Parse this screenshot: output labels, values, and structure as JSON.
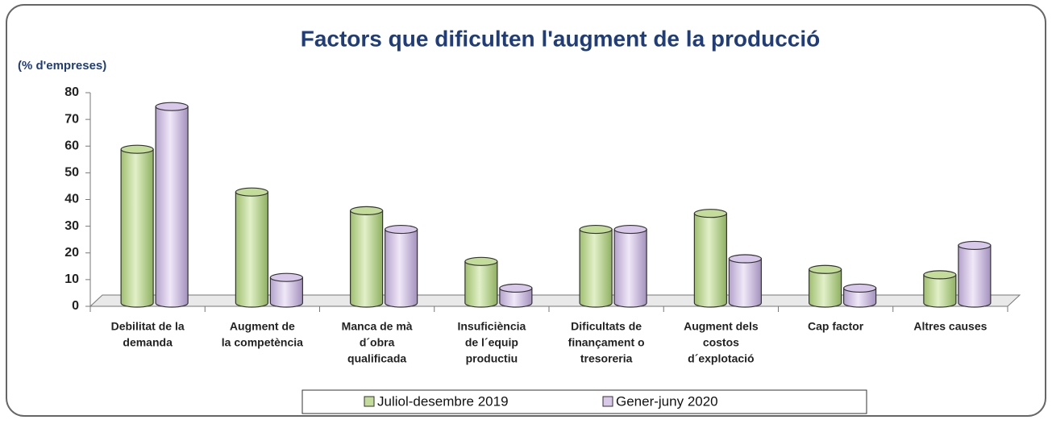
{
  "chart_data": {
    "type": "bar3d",
    "title": "Factors que dificulten l'augment de la producció",
    "y_label": "(% d'empreses)",
    "categories": [
      [
        "Debilitat de la",
        "demanda"
      ],
      [
        "Augment de",
        "la competència"
      ],
      [
        "Manca de mà",
        "d´obra",
        "qualificada"
      ],
      [
        "Insuficiència",
        "de l´equip",
        "productiu"
      ],
      [
        "Dificultats de",
        "finançament o",
        "tresoreria"
      ],
      [
        "Augment dels",
        "costos",
        "d´explotació"
      ],
      [
        "Cap factor"
      ],
      [
        "Altres causes"
      ]
    ],
    "series": [
      {
        "name": "Juliol-desembre 2019",
        "color": "#c3dc9a",
        "values": [
          57,
          41,
          34,
          15,
          27,
          33,
          12,
          10
        ]
      },
      {
        "name": "Gener-juny 2020",
        "color": "#d8c8ea",
        "values": [
          73,
          9,
          27,
          5,
          27,
          16,
          5,
          21
        ]
      }
    ],
    "ylim": [
      0,
      80
    ],
    "yticks": [
      0,
      10,
      20,
      30,
      40,
      50,
      60,
      70,
      80
    ]
  }
}
